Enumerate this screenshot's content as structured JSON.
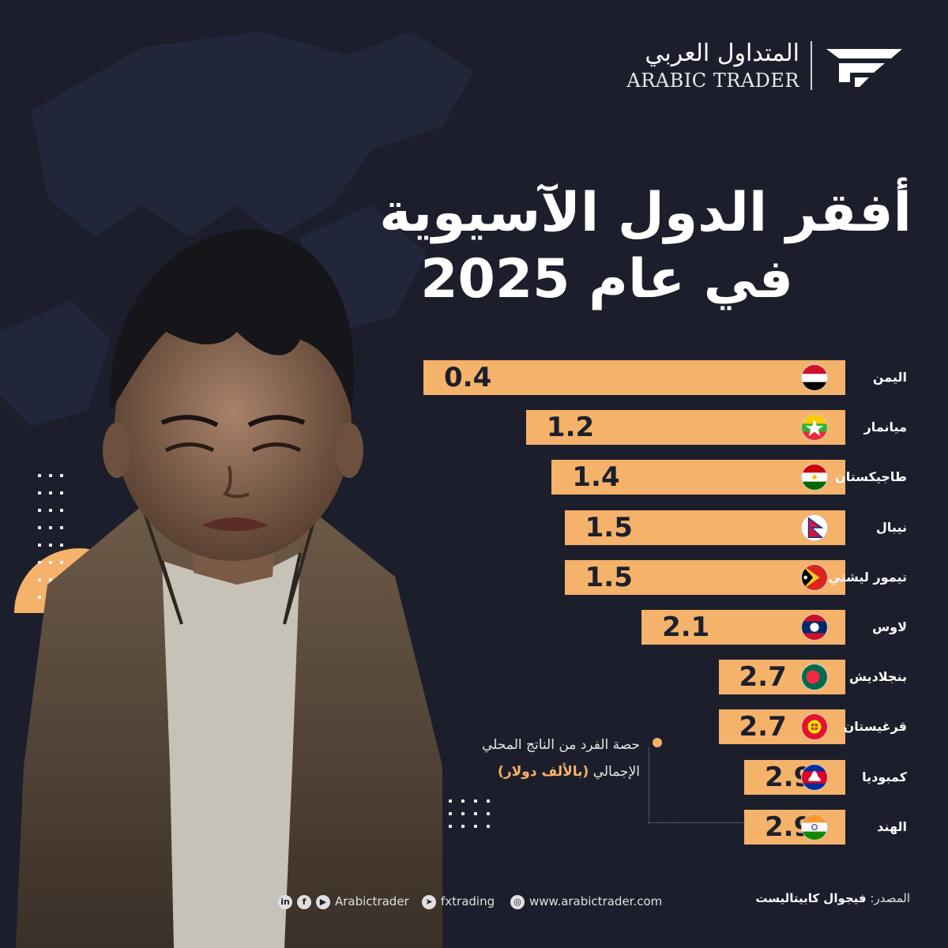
{
  "logo": {
    "arabic": "المتداول العربي",
    "english": "ARABIC TRADER",
    "icon": "arabic-trader-logo-mark"
  },
  "title": {
    "line1": "أفقر الدول الآسيوية",
    "line2": "في عام 2025"
  },
  "legend": {
    "line1": "حصة الفرد من الناتج المحلي",
    "line2_prefix": "الإجمالي",
    "unit": "(بالألف دولار)"
  },
  "footer": {
    "source_label": "المصدر:",
    "source_value": "فيجوال كابيتاليست",
    "website": "www.arabictrader.com",
    "telegram": "fxtrading",
    "social_handle": "Arabictrader",
    "icons": [
      "linkedin-icon",
      "facebook-icon",
      "youtube-icon",
      "telegram-icon",
      "globe-icon"
    ]
  },
  "colors": {
    "background": "#1c1f2b",
    "bar": "#f5b26b",
    "text": "#ffffff"
  },
  "chart_data": {
    "type": "bar",
    "orientation": "horizontal",
    "categories": [
      "اليمن",
      "ميانمار",
      "طاجيكستان",
      "نيبال",
      "تيمور ليشتي",
      "لاوس",
      "بنجلاديش",
      "قرغيستان",
      "كمبوديا",
      "الهند"
    ],
    "values": [
      0.4,
      1.2,
      1.4,
      1.5,
      1.5,
      2.1,
      2.7,
      2.7,
      2.9,
      2.9
    ],
    "value_labels": [
      "0.4",
      "1.2",
      "1.4",
      "1.5",
      "1.5",
      "2.1",
      "2.7",
      "2.7",
      "2.9",
      "2.9"
    ],
    "flags": [
      "yemen-flag-icon",
      "myanmar-flag-icon",
      "tajikistan-flag-icon",
      "nepal-flag-icon",
      "timor-leste-flag-icon",
      "laos-flag-icon",
      "bangladesh-flag-icon",
      "kyrgyzstan-flag-icon",
      "cambodia-flag-icon",
      "india-flag-icon"
    ],
    "title": "",
    "xlabel": "",
    "ylabel": "",
    "grid": false,
    "legend": "bottom-left"
  }
}
